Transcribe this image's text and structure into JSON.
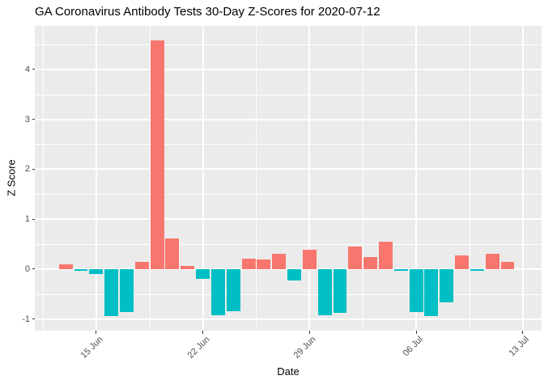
{
  "title": "GA Coronavirus Antibody Tests 30-Day Z-Scores for 2020-07-12",
  "chart_data": {
    "type": "bar",
    "title": "GA Coronavirus Antibody Tests 30-Day Z-Scores for 2020-07-12",
    "xlabel": "Date",
    "ylabel": "Z Score",
    "dates": [
      "2020-06-13",
      "2020-06-14",
      "2020-06-15",
      "2020-06-16",
      "2020-06-17",
      "2020-06-18",
      "2020-06-19",
      "2020-06-20",
      "2020-06-21",
      "2020-06-22",
      "2020-06-23",
      "2020-06-24",
      "2020-06-25",
      "2020-06-26",
      "2020-06-27",
      "2020-06-28",
      "2020-06-29",
      "2020-06-30",
      "2020-07-01",
      "2020-07-02",
      "2020-07-03",
      "2020-07-04",
      "2020-07-05",
      "2020-07-06",
      "2020-07-07",
      "2020-07-08",
      "2020-07-09",
      "2020-07-10",
      "2020-07-11",
      "2020-07-12"
    ],
    "values": [
      0.09,
      -0.03,
      -0.09,
      -0.94,
      -0.86,
      0.15,
      4.58,
      0.61,
      0.07,
      -0.2,
      -0.92,
      -0.84,
      0.21,
      0.2,
      0.31,
      -0.22,
      0.38,
      -0.92,
      -0.88,
      0.46,
      0.24,
      0.55,
      -0.03,
      -0.86,
      -0.94,
      -0.66,
      0.28,
      -0.03,
      0.31,
      0.15
    ],
    "bar_width_days": 0.9,
    "x_ticks": [
      {
        "label": "15 Jun",
        "day_index": 2
      },
      {
        "label": "22 Jun",
        "day_index": 9
      },
      {
        "label": "29 Jun",
        "day_index": 16
      },
      {
        "label": "06 Jul",
        "day_index": 23
      },
      {
        "label": "13 Jul",
        "day_index": 30
      }
    ],
    "y_ticks": [
      {
        "label": "-1",
        "value": -1
      },
      {
        "label": "0",
        "value": 0
      },
      {
        "label": "1",
        "value": 1
      },
      {
        "label": "2",
        "value": 2
      },
      {
        "label": "3",
        "value": 3
      },
      {
        "label": "4",
        "value": 4
      }
    ],
    "minor_y": [
      -0.5,
      0.5,
      1.5,
      2.5,
      3.5,
      4.5
    ],
    "minor_x_day_index": [
      -1.5,
      5.5,
      12.5,
      19.5,
      26.5
    ],
    "ylim": [
      -1.23,
      4.87
    ],
    "xlim_day_index": [
      -2.03,
      31.23
    ],
    "grid": "on",
    "legend": "none",
    "colors": {
      "positive_bar": "#F8766D",
      "negative_bar": "#00BFC4",
      "panel_background": "#EBEBEB",
      "gridline": "#FFFFFF",
      "tick_label": "#4D4D4D",
      "tick_mark": "#333333",
      "axis_title": "#000000",
      "title": "#000000"
    }
  }
}
